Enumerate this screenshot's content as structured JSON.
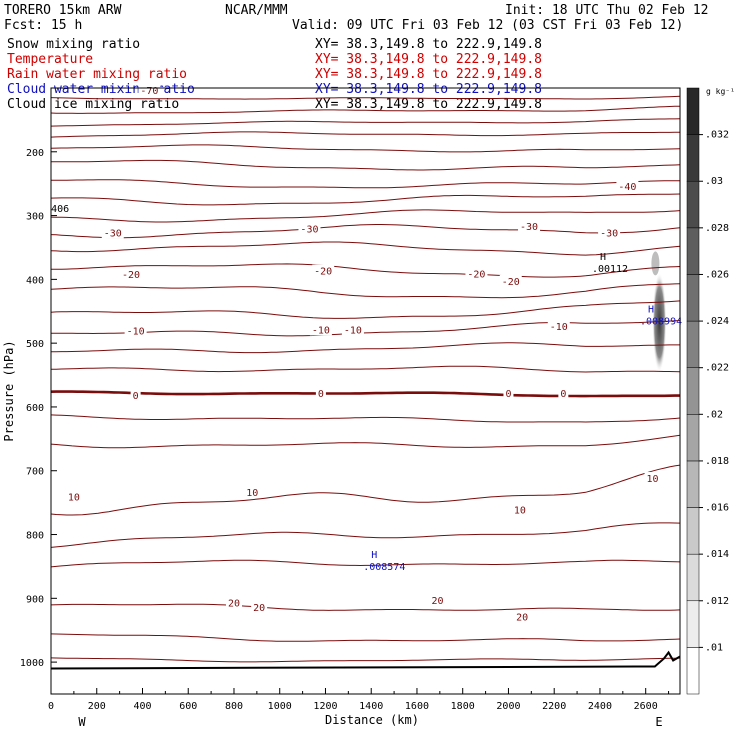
{
  "header": {
    "model": "TORERO  15km ARW",
    "center": "NCAR/MMM",
    "init": "Init: 18 UTC Thu 02 Feb 12",
    "fcst": "Fcst:   15 h",
    "valid": "Valid: 09 UTC Fri 03 Feb 12 (03 CST Fri 03 Feb 12)"
  },
  "fields": [
    {
      "name": "Snow mixing ratio",
      "xy": "XY=  38.3,149.8 to 222.9,149.8",
      "color": "#000000"
    },
    {
      "name": "Temperature",
      "xy": "XY=  38.3,149.8 to 222.9,149.8",
      "color": "#d00000"
    },
    {
      "name": "Rain water mixing ratio",
      "xy": "XY=  38.3,149.8 to 222.9,149.8",
      "color": "#d00000"
    },
    {
      "name": "Cloud water mixing ratio",
      "xy": "XY=  38.3,149.8 to 222.9,149.8",
      "color": "#1010c0"
    },
    {
      "name": "Cloud ice mixing ratio",
      "xy": "XY=  38.3,149.8 to 222.9,149.8",
      "color": "#000000"
    }
  ],
  "chart_data": {
    "type": "contour cross-section",
    "xlabel": "Distance (km)",
    "ylabel": "Pressure (hPa)",
    "xlim": [
      0,
      2750
    ],
    "ylim": [
      1050,
      100
    ],
    "xticks": [
      0,
      200,
      400,
      600,
      800,
      1000,
      1200,
      1400,
      1600,
      1800,
      2000,
      2200,
      2400,
      2600
    ],
    "yticks": [
      200,
      300,
      400,
      500,
      600,
      700,
      800,
      900,
      1000
    ],
    "x_end_labels": {
      "left": "W",
      "right": "E"
    },
    "colorbar": {
      "unit": "g kg⁻¹",
      "ticks": [
        ".01",
        ".012",
        ".014",
        ".016",
        ".018",
        ".02",
        ".022",
        ".024",
        ".026",
        ".028",
        ".03",
        ".032"
      ]
    },
    "temperature_contours": [
      {
        "p": 115,
        "amp": 2,
        "width": 1
      },
      {
        "p": 135,
        "amp": 3,
        "width": 1
      },
      {
        "p": 155,
        "amp": 3,
        "width": 1
      },
      {
        "p": 175,
        "amp": 4,
        "width": 1
      },
      {
        "p": 198,
        "amp": 5,
        "width": 1
      },
      {
        "p": 222,
        "amp": 6,
        "width": 1
      },
      {
        "p": 248,
        "amp": 6,
        "width": 1
      },
      {
        "p": 272,
        "amp": 7,
        "width": 1
      },
      {
        "p": 300,
        "amp": 7,
        "width": 1
      },
      {
        "p": 328,
        "amp": 8,
        "width": 1
      },
      {
        "p": 355,
        "amp": 8,
        "width": 1
      },
      {
        "p": 385,
        "amp": 8,
        "width": 1
      },
      {
        "p": 415,
        "amp": 9,
        "width": 1
      },
      {
        "p": 448,
        "amp": 9,
        "width": 1
      },
      {
        "p": 480,
        "amp": 8,
        "width": 1
      },
      {
        "p": 512,
        "amp": 7,
        "width": 1
      },
      {
        "p": 545,
        "amp": 6,
        "width": 1
      },
      {
        "p": 580,
        "amp": 3,
        "width": 2.6
      },
      {
        "p": 617,
        "amp": 5,
        "width": 1
      },
      {
        "p": 655,
        "amp": 7,
        "width": 1
      },
      {
        "p": 738,
        "amp": 18,
        "width": 1
      },
      {
        "p": 805,
        "amp": 10,
        "width": 1
      },
      {
        "p": 850,
        "amp": 7,
        "width": 1
      },
      {
        "p": 918,
        "amp": 6,
        "width": 1
      },
      {
        "p": 963,
        "amp": 5,
        "width": 1
      },
      {
        "p": 995,
        "amp": 3,
        "width": 1
      }
    ],
    "contour_labels": [
      {
        "text": "-70",
        "x": 430,
        "p": 105
      },
      {
        "text": "-40",
        "x": 2520,
        "p": 255
      },
      {
        "text": "406",
        "x": 40,
        "p": 290
      },
      {
        "text": "-30",
        "x": 270,
        "p": 328
      },
      {
        "text": "-30",
        "x": 1130,
        "p": 322
      },
      {
        "text": "-30",
        "x": 2090,
        "p": 318
      },
      {
        "text": "-30",
        "x": 2440,
        "p": 328
      },
      {
        "text": "-20",
        "x": 350,
        "p": 393
      },
      {
        "text": "-20",
        "x": 1190,
        "p": 388
      },
      {
        "text": "-20",
        "x": 1860,
        "p": 392
      },
      {
        "text": "-20",
        "x": 2010,
        "p": 404
      },
      {
        "text": "-10",
        "x": 370,
        "p": 482
      },
      {
        "text": "-10",
        "x": 1180,
        "p": 480
      },
      {
        "text": "-10",
        "x": 1320,
        "p": 480
      },
      {
        "text": "-10",
        "x": 2220,
        "p": 475
      },
      {
        "text": "0",
        "x": 370,
        "p": 583
      },
      {
        "text": "0",
        "x": 1180,
        "p": 580
      },
      {
        "text": "0",
        "x": 2000,
        "p": 580
      },
      {
        "text": "0",
        "x": 2240,
        "p": 580
      },
      {
        "text": "10",
        "x": 100,
        "p": 742
      },
      {
        "text": "10",
        "x": 880,
        "p": 735
      },
      {
        "text": "10",
        "x": 2050,
        "p": 762
      },
      {
        "text": "10",
        "x": 2630,
        "p": 713
      },
      {
        "text": "20",
        "x": 800,
        "p": 908
      },
      {
        "text": "20",
        "x": 910,
        "p": 915
      },
      {
        "text": "20",
        "x": 1690,
        "p": 904
      },
      {
        "text": "20",
        "x": 2060,
        "p": 930
      }
    ],
    "maxima": [
      {
        "text": "H",
        "value": ".00112",
        "x": 2400,
        "p": 370,
        "color": "#000000"
      },
      {
        "text": "H",
        "value": ".008994",
        "x": 2610,
        "p": 452,
        "color": "#1010c0"
      },
      {
        "text": "H",
        "value": ".008574",
        "x": 1400,
        "p": 837,
        "color": "#1010c0"
      }
    ],
    "shading": {
      "x": 2660,
      "p": 480
    }
  }
}
